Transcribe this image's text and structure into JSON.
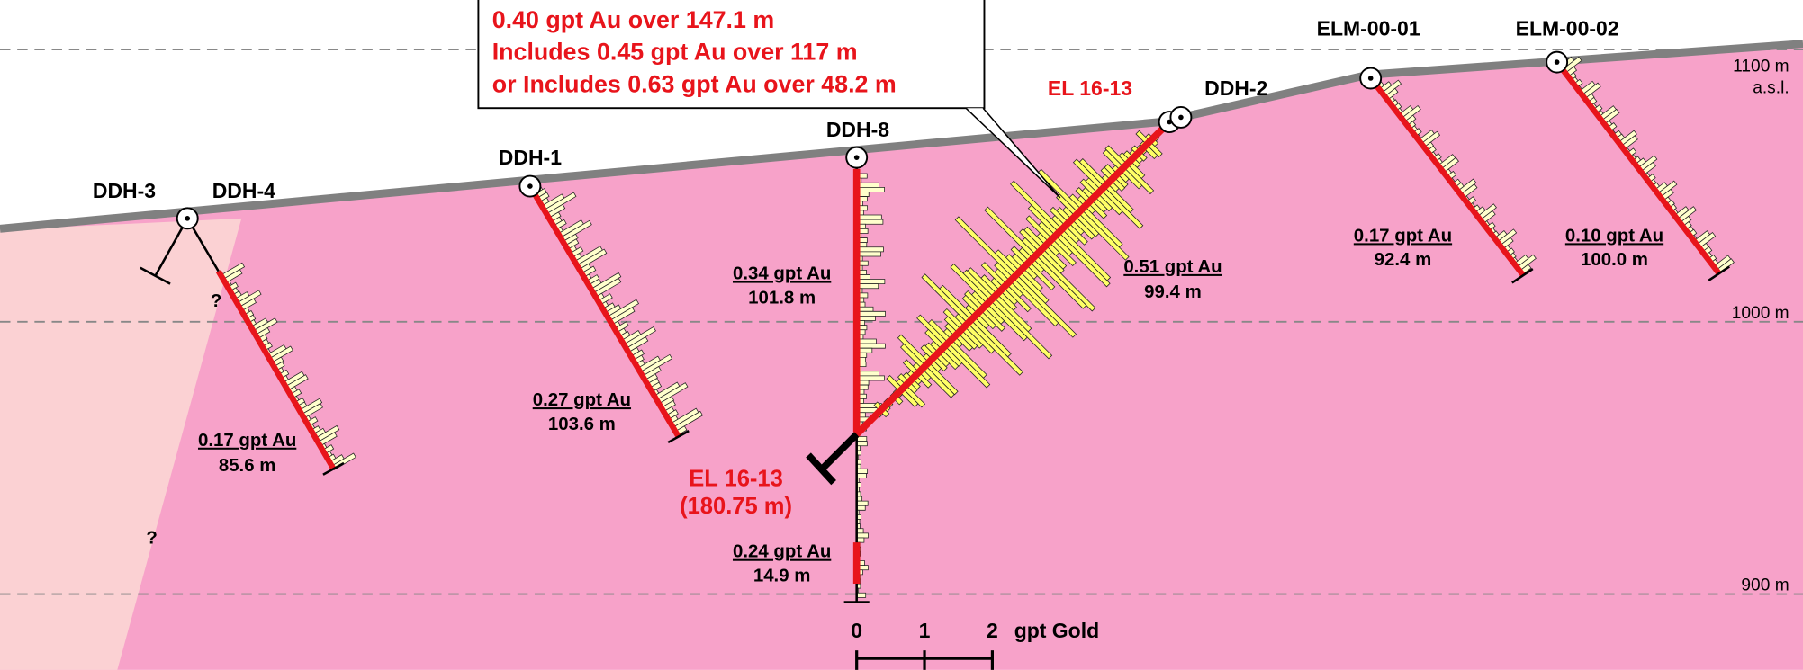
{
  "callout": {
    "lines": [
      "0.40 gpt Au over 147.1 m",
      "Includes 0.45 gpt Au over 117 m",
      "or Includes 0.63 gpt Au over 48.2 m"
    ]
  },
  "holes": [
    {
      "name": "DDH-3"
    },
    {
      "name": "DDH-4"
    },
    {
      "name": "DDH-1"
    },
    {
      "name": "DDH-8"
    },
    {
      "name": "EL 16-13"
    },
    {
      "name": "DDH-2"
    },
    {
      "name": "ELM-00-01"
    },
    {
      "name": "ELM-00-02"
    }
  ],
  "intercepts": [
    {
      "grade": "0.17 gpt Au",
      "length": "85.6 m"
    },
    {
      "grade": "0.27 gpt Au",
      "length": "103.6 m"
    },
    {
      "grade": "0.34 gpt Au",
      "length": "101.8 m"
    },
    {
      "grade": "0.24 gpt Au",
      "length": "14.9 m"
    },
    {
      "grade": "0.51 gpt Au",
      "length": "99.4 m"
    },
    {
      "grade": "0.17 gpt Au",
      "length": "92.4 m"
    },
    {
      "grade": "0.10 gpt Au",
      "length": "100.0 m"
    }
  ],
  "elevations": {
    "top": "1100 m",
    "datum": "a.s.l.",
    "middle": "1000 m",
    "bottom": "900 m"
  },
  "hole_end": {
    "name": "EL 16-13",
    "depth": "(180.75 m)"
  },
  "unknowns": [
    "?",
    "?"
  ],
  "scale": {
    "ticks": [
      "0",
      "1",
      "2"
    ],
    "unit": "gpt Gold"
  }
}
